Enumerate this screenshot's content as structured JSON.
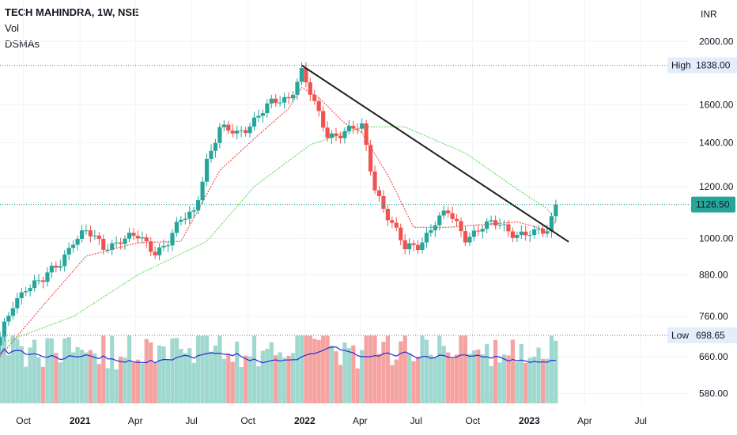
{
  "legend": {
    "title": "TECH MAHINDRA, 1W, NSE",
    "vol": "Vol",
    "dsmas": "DSMAs"
  },
  "price_axis": {
    "currency": "INR",
    "ticks": [
      "2000.00",
      "1600.00",
      "1400.00",
      "1200.00",
      "1000.00",
      "880.00",
      "760.00",
      "660.00",
      "580.00"
    ]
  },
  "markers": {
    "high_label": "High",
    "high_value": "1838.00",
    "low_label": "Low",
    "low_value": "698.65",
    "last_value": "1126.50"
  },
  "time_axis": {
    "ticks": [
      "Oct",
      "2021",
      "Apr",
      "Jul",
      "Oct",
      "2022",
      "Apr",
      "Jul",
      "Oct",
      "2023",
      "Apr",
      "Jul"
    ],
    "bold": [
      false,
      true,
      false,
      false,
      false,
      true,
      false,
      false,
      false,
      true,
      false,
      false
    ]
  },
  "colors": {
    "up": "#26a69a",
    "down": "#ef5350",
    "vol_up": "#9fd8cf",
    "vol_down": "#f5a3a1",
    "vol_ma": "#2a2ad6",
    "dsma_fast": "#ef5350",
    "dsma_slow": "#66dd66",
    "trendline": "#1e1e1e",
    "last_badge": "#26a69a",
    "label_bg": "#e3eefa"
  },
  "chart_data": {
    "type": "candlestick",
    "symbol": "TECH MAHINDRA",
    "interval": "1W",
    "exchange": "NSE",
    "y_scale": "log",
    "y_range": [
      560,
      2300
    ],
    "x_range": [
      "2020-08-24",
      "2023-08-21"
    ],
    "price_anchors": [
      [
        "2020-08-24",
        700
      ],
      [
        "2020-09-14",
        790
      ],
      [
        "2020-10-05",
        850
      ],
      [
        "2020-11-02",
        860
      ],
      [
        "2020-11-30",
        920
      ],
      [
        "2020-12-21",
        1000
      ],
      [
        "2021-01-11",
        1020
      ],
      [
        "2021-02-08",
        970
      ],
      [
        "2021-03-08",
        1000
      ],
      [
        "2021-04-05",
        1000
      ],
      [
        "2021-05-03",
        960
      ],
      [
        "2021-05-24",
        990
      ],
      [
        "2021-06-14",
        1060
      ],
      [
        "2021-07-05",
        1100
      ],
      [
        "2021-07-26",
        1320
      ],
      [
        "2021-08-16",
        1460
      ],
      [
        "2021-09-13",
        1450
      ],
      [
        "2021-10-11",
        1520
      ],
      [
        "2021-11-08",
        1600
      ],
      [
        "2021-12-06",
        1650
      ],
      [
        "2021-12-27",
        1800
      ],
      [
        "2022-01-17",
        1590
      ],
      [
        "2022-02-07",
        1440
      ],
      [
        "2022-03-07",
        1460
      ],
      [
        "2022-04-04",
        1470
      ],
      [
        "2022-04-25",
        1200
      ],
      [
        "2022-05-23",
        1050
      ],
      [
        "2022-06-13",
        960
      ],
      [
        "2022-07-04",
        980
      ],
      [
        "2022-08-01",
        1060
      ],
      [
        "2022-08-22",
        1090
      ],
      [
        "2022-09-19",
        1010
      ],
      [
        "2022-10-17",
        1040
      ],
      [
        "2022-11-14",
        1050
      ],
      [
        "2022-12-12",
        1020
      ],
      [
        "2023-01-09",
        1010
      ],
      [
        "2023-01-30",
        1030
      ],
      [
        "2023-02-13",
        1126.5
      ]
    ],
    "dsma_fast_anchors": [
      [
        "2020-08-24",
        660
      ],
      [
        "2020-11-02",
        790
      ],
      [
        "2021-01-11",
        940
      ],
      [
        "2021-04-05",
        985
      ],
      [
        "2021-06-14",
        990
      ],
      [
        "2021-08-16",
        1270
      ],
      [
        "2021-10-11",
        1420
      ],
      [
        "2021-12-06",
        1580
      ],
      [
        "2021-12-27",
        1700
      ],
      [
        "2022-01-24",
        1640
      ],
      [
        "2022-03-07",
        1500
      ],
      [
        "2022-04-04",
        1450
      ],
      [
        "2022-05-16",
        1250
      ],
      [
        "2022-06-27",
        1040
      ],
      [
        "2022-08-22",
        1040
      ],
      [
        "2022-10-17",
        1050
      ],
      [
        "2022-12-12",
        1060
      ],
      [
        "2023-01-30",
        1030
      ],
      [
        "2023-02-13",
        1060
      ]
    ],
    "dsma_slow_anchors": [
      [
        "2020-08-24",
        690
      ],
      [
        "2020-12-21",
        760
      ],
      [
        "2021-04-05",
        880
      ],
      [
        "2021-07-26",
        990
      ],
      [
        "2021-10-11",
        1200
      ],
      [
        "2022-01-10",
        1390
      ],
      [
        "2022-04-04",
        1480
      ],
      [
        "2022-06-13",
        1480
      ],
      [
        "2022-09-19",
        1350
      ],
      [
        "2022-12-12",
        1190
      ],
      [
        "2023-01-30",
        1110
      ],
      [
        "2023-02-13",
        1060
      ]
    ],
    "trendline": [
      [
        "2021-12-27",
        1838
      ],
      [
        "2023-03-06",
        988
      ]
    ],
    "high": 1838.0,
    "low": 698.65,
    "last": 1126.5
  }
}
